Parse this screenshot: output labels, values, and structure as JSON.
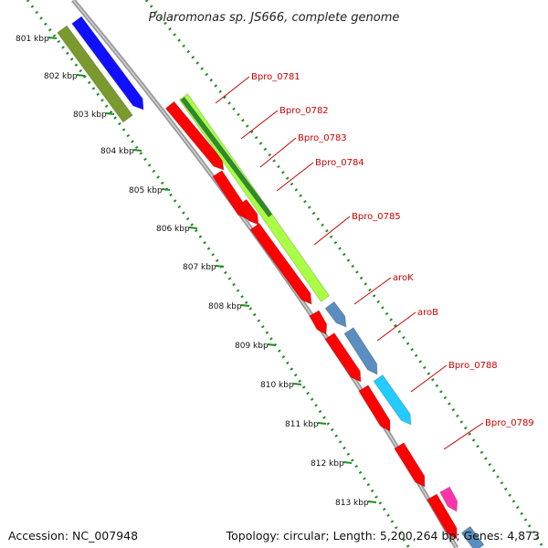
{
  "title": "Polaromonas sp. JS666, complete genome",
  "kbp_labels": [
    "801 kbp",
    "802 kbp",
    "803 kbp",
    "804 kbp",
    "805 kbp",
    "806 kbp",
    "807 kbp",
    "808 kbp",
    "809 kbp",
    "810 kbp",
    "811 kbp",
    "812 kbp",
    "813 kbp"
  ],
  "gene_labels": [
    "Bpro_0781",
    "Bpro_0782",
    "Bpro_0783",
    "Bpro_0784",
    "Bpro_0785",
    "aroK",
    "aroB",
    "Bpro_0788",
    "Bpro_0789"
  ],
  "footer": {
    "accession": "Accession: NC_007948",
    "summary": "Topology: circular; Length: 5,200,264 bp; Genes: 4,873"
  },
  "colors": {
    "cds": "#ff0000",
    "gene_lime": "#aaff44",
    "gene_dark_green": "#2e8b2e",
    "gene_olive": "#7a9a2e",
    "gene_blue": "#1010ff",
    "gene_steel": "#5a8ec0",
    "gene_cyan": "#22ccff",
    "gene_magenta": "#ff33aa",
    "backbone": "#999999",
    "ruler": "#228b22",
    "label": "#cc0000"
  }
}
